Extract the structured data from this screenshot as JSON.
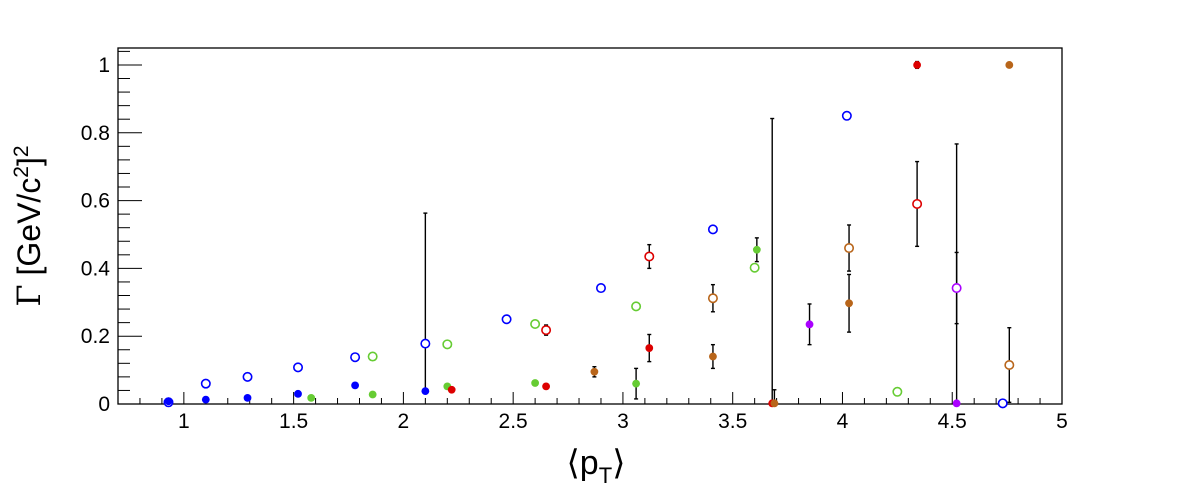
{
  "chart_data": {
    "type": "scatter",
    "title": "",
    "xlabel": "⟨p_T⟩",
    "ylabel": "Γ [GeV/c²]²",
    "xlim": [
      0.7,
      5.0
    ],
    "ylim": [
      0,
      1.05
    ],
    "grid": false,
    "legend": "none",
    "xticks": [
      "1",
      "1.5",
      "2",
      "2.5",
      "3",
      "3.5",
      "4",
      "4.5",
      "5"
    ],
    "yticks": [
      "0",
      "0.2",
      "0.4",
      "0.6",
      "0.8",
      "1"
    ],
    "series": [
      {
        "marker": "open",
        "color": "#0000ff",
        "points": [
          {
            "x": 0.93,
            "y": 0.005
          },
          {
            "x": 1.1,
            "y": 0.06
          },
          {
            "x": 1.29,
            "y": 0.08
          },
          {
            "x": 1.52,
            "y": 0.108
          },
          {
            "x": 1.78,
            "y": 0.138
          },
          {
            "x": 2.1,
            "y": 0.178
          },
          {
            "x": 2.47,
            "y": 0.25
          },
          {
            "x": 2.9,
            "y": 0.342
          },
          {
            "x": 3.41,
            "y": 0.515
          },
          {
            "x": 4.02,
            "y": 0.85
          },
          {
            "x": 4.73,
            "y": 0.002
          }
        ]
      },
      {
        "marker": "filled",
        "color": "#0000ff",
        "points": [
          {
            "x": 0.93,
            "y": 0.008
          },
          {
            "x": 1.1,
            "y": 0.013
          },
          {
            "x": 1.29,
            "y": 0.018
          },
          {
            "x": 1.52,
            "y": 0.03
          },
          {
            "x": 1.78,
            "y": 0.055
          },
          {
            "x": 2.1,
            "y": 0.038,
            "err": [
              0.0,
              0.525
            ]
          }
        ]
      },
      {
        "marker": "open",
        "color": "#66cc33",
        "points": [
          {
            "x": 1.86,
            "y": 0.14
          },
          {
            "x": 2.2,
            "y": 0.176
          },
          {
            "x": 2.6,
            "y": 0.236
          },
          {
            "x": 3.06,
            "y": 0.288
          },
          {
            "x": 3.6,
            "y": 0.402
          },
          {
            "x": 4.25,
            "y": 0.036
          }
        ]
      },
      {
        "marker": "filled",
        "color": "#66cc33",
        "points": [
          {
            "x": 1.58,
            "y": 0.018
          },
          {
            "x": 1.86,
            "y": 0.028
          },
          {
            "x": 2.2,
            "y": 0.052
          },
          {
            "x": 2.6,
            "y": 0.062
          },
          {
            "x": 3.06,
            "y": 0.06,
            "err": [
              0.045,
              0.045
            ]
          },
          {
            "x": 3.61,
            "y": 0.455,
            "err": [
              0.035,
              0.035
            ]
          }
        ]
      },
      {
        "marker": "open",
        "color": "#dd0000",
        "points": [
          {
            "x": 2.65,
            "y": 0.218,
            "err": [
              0.015,
              0.015
            ]
          },
          {
            "x": 3.12,
            "y": 0.435,
            "err": [
              0.035,
              0.035
            ]
          },
          {
            "x": 4.34,
            "y": 0.59,
            "err": [
              0.125,
              0.125
            ]
          }
        ]
      },
      {
        "marker": "filled",
        "color": "#dd0000",
        "points": [
          {
            "x": 2.22,
            "y": 0.042
          },
          {
            "x": 2.65,
            "y": 0.052
          },
          {
            "x": 3.12,
            "y": 0.165,
            "err": [
              0.04,
              0.04
            ]
          },
          {
            "x": 3.68,
            "y": 0.002,
            "err": [
              0.0,
              0.84
            ]
          },
          {
            "x": 4.34,
            "y": 1.0,
            "err": [
              0.01,
              0.01
            ]
          }
        ]
      },
      {
        "marker": "open",
        "color": "#b8651a",
        "points": [
          {
            "x": 3.41,
            "y": 0.312,
            "err": [
              0.04,
              0.04
            ]
          },
          {
            "x": 4.03,
            "y": 0.46,
            "err": [
              0.068,
              0.068
            ]
          },
          {
            "x": 4.76,
            "y": 0.115,
            "err": [
              0.11,
              0.11
            ]
          }
        ]
      },
      {
        "marker": "filled",
        "color": "#b8651a",
        "points": [
          {
            "x": 2.87,
            "y": 0.095,
            "err": [
              0.015,
              0.015
            ]
          },
          {
            "x": 3.41,
            "y": 0.14,
            "err": [
              0.035,
              0.035
            ]
          },
          {
            "x": 3.69,
            "y": 0.002,
            "err": [
              0.0,
              0.04
            ]
          },
          {
            "x": 4.03,
            "y": 0.297,
            "err": [
              0.085,
              0.085
            ]
          },
          {
            "x": 4.76,
            "y": 1.0
          }
        ]
      },
      {
        "marker": "open",
        "color": "#aa00ff",
        "points": [
          {
            "x": 4.52,
            "y": 0.342,
            "err": [
              0.105,
              0.105
            ]
          }
        ]
      },
      {
        "marker": "filled",
        "color": "#aa00ff",
        "points": [
          {
            "x": 3.85,
            "y": 0.235,
            "err": [
              0.06,
              0.06
            ]
          },
          {
            "x": 4.52,
            "y": 0.002,
            "err": [
              0.0,
              0.765
            ]
          }
        ]
      }
    ]
  }
}
